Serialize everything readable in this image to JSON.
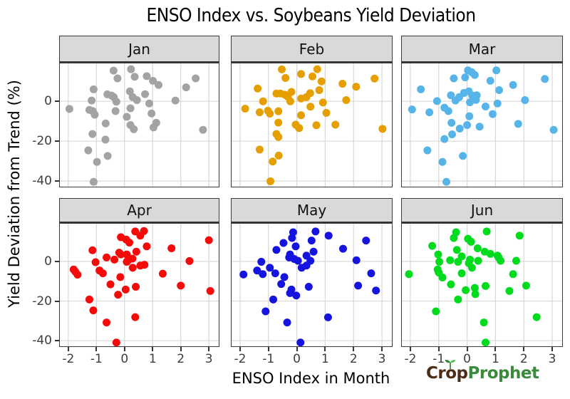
{
  "chart_data": {
    "type": "scatter",
    "title": "ENSO Index vs. Soybeans Yield Deviation",
    "xlabel": "ENSO Index in Month",
    "ylabel": "Yield Deviation from Trend (%)",
    "grid": true,
    "legend": "none",
    "xlim": [
      -2.3,
      3.35
    ],
    "ylim": [
      -42.8,
      19
    ],
    "x_ticks": [
      -2,
      -1,
      0,
      1,
      2,
      3
    ],
    "y_ticks": [
      0,
      -20,
      -40
    ],
    "facet_layout": "2 rows x 3 cols",
    "facets": [
      {
        "label": "Jan",
        "color": "#A3A3A3",
        "points": [
          [
            -0.39,
            15.4
          ],
          [
            0.23,
            16.1
          ],
          [
            0.36,
            12.3
          ],
          [
            -0.25,
            11.5
          ],
          [
            0.79,
            12.6
          ],
          [
            1.01,
            10.3
          ],
          [
            1.21,
            8.2
          ],
          [
            2.53,
            11.5
          ],
          [
            2.19,
            7.0
          ],
          [
            -1.1,
            6.0
          ],
          [
            0.19,
            5.0
          ],
          [
            -0.61,
            3.5
          ],
          [
            -0.46,
            2.9
          ],
          [
            -0.38,
            2.1
          ],
          [
            0.73,
            3.6
          ],
          [
            0.29,
            2.1
          ],
          [
            0.44,
            0.6
          ],
          [
            -0.29,
            -0.2
          ],
          [
            -1.17,
            0.4
          ],
          [
            1.81,
            0.4
          ],
          [
            0.88,
            -1.1
          ],
          [
            -1.96,
            -3.8
          ],
          [
            -1.25,
            -4.3
          ],
          [
            -1.13,
            -4.9
          ],
          [
            0.21,
            -3.5
          ],
          [
            -0.32,
            -4.9
          ],
          [
            0.96,
            -6.1
          ],
          [
            -1.06,
            -6.7
          ],
          [
            0.08,
            -7.8
          ],
          [
            -0.67,
            -11.1
          ],
          [
            0.21,
            -11.9
          ],
          [
            0.33,
            -14.0
          ],
          [
            1.13,
            -10.8
          ],
          [
            1.03,
            -13.1
          ],
          [
            2.79,
            -14.3
          ],
          [
            -1.14,
            -16.4
          ],
          [
            -0.68,
            -19.2
          ],
          [
            -1.29,
            -24.6
          ],
          [
            -0.6,
            -27.4
          ],
          [
            -0.98,
            -30.4
          ],
          [
            -1.1,
            -40.4
          ]
        ]
      },
      {
        "label": "Feb",
        "color": "#E69F00",
        "points": [
          [
            -0.53,
            16.0
          ],
          [
            0.72,
            16.1
          ],
          [
            0.15,
            13.7
          ],
          [
            0.55,
            12.5
          ],
          [
            -0.4,
            11.7
          ],
          [
            0.87,
            10.0
          ],
          [
            2.74,
            11.4
          ],
          [
            1.61,
            8.8
          ],
          [
            2.09,
            7.3
          ],
          [
            -1.38,
            6.4
          ],
          [
            0.79,
            5.6
          ],
          [
            -0.72,
            3.9
          ],
          [
            -0.58,
            3.9
          ],
          [
            -0.42,
            3.3
          ],
          [
            -0.19,
            4.7
          ],
          [
            -0.32,
            2.3
          ],
          [
            0.47,
            4.1
          ],
          [
            0.34,
            2.1
          ],
          [
            0.15,
            1.4
          ],
          [
            -0.23,
            0.0
          ],
          [
            -1.19,
            0.0
          ],
          [
            1.74,
            0.6
          ],
          [
            0.48,
            -2.7
          ],
          [
            0.92,
            -0.6
          ],
          [
            -1.82,
            -3.7
          ],
          [
            -1.31,
            -5.5
          ],
          [
            -1.02,
            -4.7
          ],
          [
            -0.95,
            -6.2
          ],
          [
            -0.65,
            -5.0
          ],
          [
            0.15,
            -7.0
          ],
          [
            1.04,
            -5.8
          ],
          [
            -0.65,
            -10.7
          ],
          [
            -0.04,
            -11.7
          ],
          [
            0.08,
            -13.4
          ],
          [
            0.69,
            -12.0
          ],
          [
            1.36,
            -11.7
          ],
          [
            3.02,
            -13.8
          ],
          [
            -0.72,
            -16.4
          ],
          [
            -0.65,
            -17.9
          ],
          [
            -1.31,
            -24.2
          ],
          [
            -0.64,
            -27.2
          ],
          [
            -0.85,
            -30.2
          ],
          [
            -0.93,
            -40.1
          ]
        ]
      },
      {
        "label": "Mar",
        "color": "#56B4E9",
        "points": [
          [
            0.03,
            15.5
          ],
          [
            0.16,
            14.6
          ],
          [
            -0.07,
            12.0
          ],
          [
            0.27,
            13.2
          ],
          [
            1.03,
            15.5
          ],
          [
            -0.47,
            11.5
          ],
          [
            0.82,
            10.3
          ],
          [
            2.74,
            11.2
          ],
          [
            1.62,
            8.2
          ],
          [
            -1.63,
            6.0
          ],
          [
            1.13,
            5.6
          ],
          [
            0.06,
            5.0
          ],
          [
            -0.11,
            4.2
          ],
          [
            -0.57,
            3.0
          ],
          [
            -0.28,
            2.1
          ],
          [
            0.18,
            2.9
          ],
          [
            0.34,
            3.0
          ],
          [
            0.31,
            0.7
          ],
          [
            -1.06,
            0.1
          ],
          [
            -0.41,
            0.4
          ],
          [
            0.1,
            -0.5
          ],
          [
            2.04,
            0.6
          ],
          [
            0.65,
            -2.6
          ],
          [
            1.07,
            -1.1
          ],
          [
            -1.94,
            -4.1
          ],
          [
            -0.8,
            -3.2
          ],
          [
            -0.66,
            -4.9
          ],
          [
            -1.33,
            -5.5
          ],
          [
            0.9,
            -6.4
          ],
          [
            0.08,
            -7.5
          ],
          [
            -0.55,
            -10.8
          ],
          [
            0.0,
            -11.9
          ],
          [
            0.44,
            -12.7
          ],
          [
            -0.26,
            -13.7
          ],
          [
            1.8,
            -11.3
          ],
          [
            3.05,
            -14.3
          ],
          [
            -0.53,
            -16.6
          ],
          [
            -0.8,
            -18.9
          ],
          [
            -1.4,
            -24.6
          ],
          [
            -0.15,
            -27.4
          ],
          [
            -0.87,
            -30.4
          ],
          [
            -0.73,
            -40.4
          ]
        ]
      },
      {
        "label": "Apr",
        "color": "#F50A0A",
        "points": [
          [
            0.38,
            15.1
          ],
          [
            0.69,
            15.3
          ],
          [
            0.56,
            13.0
          ],
          [
            -0.13,
            12.2
          ],
          [
            0.06,
            11.0
          ],
          [
            0.17,
            9.5
          ],
          [
            3.0,
            10.7
          ],
          [
            0.79,
            7.6
          ],
          [
            1.67,
            6.6
          ],
          [
            -1.14,
            5.6
          ],
          [
            0.42,
            4.9
          ],
          [
            -0.19,
            4.4
          ],
          [
            -0.13,
            3.5
          ],
          [
            -0.64,
            2.0
          ],
          [
            0.08,
            3.5
          ],
          [
            -0.36,
            0.9
          ],
          [
            0.13,
            0.6
          ],
          [
            0.28,
            1.4
          ],
          [
            -1.03,
            -0.4
          ],
          [
            0.08,
            -0.2
          ],
          [
            2.31,
            0.2
          ],
          [
            0.56,
            -2.1
          ],
          [
            0.71,
            -1.7
          ],
          [
            -1.81,
            -4.1
          ],
          [
            -1.75,
            -5.2
          ],
          [
            -1.67,
            -6.7
          ],
          [
            -0.89,
            -4.6
          ],
          [
            -0.77,
            -6.0
          ],
          [
            0.29,
            -3.2
          ],
          [
            -0.15,
            -7.9
          ],
          [
            1.36,
            -6.2
          ],
          [
            -0.5,
            -11.6
          ],
          [
            0.04,
            -14.2
          ],
          [
            0.4,
            -12.8
          ],
          [
            2.0,
            -12.2
          ],
          [
            -0.23,
            -16.8
          ],
          [
            3.05,
            -14.9
          ],
          [
            -1.25,
            -19.2
          ],
          [
            -1.11,
            -24.7
          ],
          [
            -0.64,
            -30.8
          ],
          [
            0.38,
            -28.1
          ],
          [
            -0.29,
            -40.9
          ]
        ]
      },
      {
        "label": "May",
        "color": "#1414DE",
        "points": [
          [
            -0.13,
            14.7
          ],
          [
            0.66,
            15.1
          ],
          [
            -0.17,
            11.8
          ],
          [
            1.12,
            13.0
          ],
          [
            -0.47,
            9.3
          ],
          [
            0.52,
            10.5
          ],
          [
            2.44,
            10.5
          ],
          [
            -0.04,
            7.6
          ],
          [
            -0.72,
            5.8
          ],
          [
            1.63,
            6.4
          ],
          [
            0.59,
            4.9
          ],
          [
            -0.24,
            3.5
          ],
          [
            -0.27,
            2.0
          ],
          [
            -0.09,
            1.2
          ],
          [
            0.04,
            0.3
          ],
          [
            0.34,
            2.9
          ],
          [
            0.48,
            0.3
          ],
          [
            -1.25,
            -0.2
          ],
          [
            2.1,
            0.6
          ],
          [
            0.17,
            -3.2
          ],
          [
            0.34,
            -2.1
          ],
          [
            -1.4,
            -4.6
          ],
          [
            -1.2,
            -6.4
          ],
          [
            -0.95,
            -3.2
          ],
          [
            -1.88,
            -6.6
          ],
          [
            -0.76,
            -6.0
          ],
          [
            -0.44,
            -7.9
          ],
          [
            2.62,
            -6.0
          ],
          [
            -0.55,
            -11.4
          ],
          [
            -0.19,
            -14.2
          ],
          [
            -0.24,
            -16.0
          ],
          [
            0.42,
            -12.8
          ],
          [
            2.16,
            -12.2
          ],
          [
            2.79,
            -14.7
          ],
          [
            -0.02,
            -17.2
          ],
          [
            -0.83,
            -19.2
          ],
          [
            -1.1,
            -25.2
          ],
          [
            -0.34,
            -30.8
          ],
          [
            1.1,
            -28.2
          ],
          [
            0.13,
            -40.9
          ]
        ]
      },
      {
        "label": "Jun",
        "color": "#00DB1E",
        "points": [
          [
            -0.39,
            14.7
          ],
          [
            0.69,
            15.1
          ],
          [
            -0.47,
            11.8
          ],
          [
            0.03,
            11.4
          ],
          [
            0.14,
            9.9
          ],
          [
            1.85,
            13.0
          ],
          [
            -1.23,
            7.8
          ],
          [
            -0.36,
            5.8
          ],
          [
            0.37,
            6.6
          ],
          [
            -1.02,
            3.5
          ],
          [
            0.62,
            4.9
          ],
          [
            0.82,
            3.8
          ],
          [
            -0.19,
            2.5
          ],
          [
            1.07,
            2.9
          ],
          [
            1.11,
            2.0
          ],
          [
            -0.98,
            -0.2
          ],
          [
            -0.6,
            0.6
          ],
          [
            -0.32,
            -0.2
          ],
          [
            0.1,
            0.9
          ],
          [
            0.06,
            -0.9
          ],
          [
            0.39,
            0.3
          ],
          [
            1.18,
            0.3
          ],
          [
            1.73,
            0.3
          ],
          [
            -2.05,
            -6.4
          ],
          [
            -1.04,
            -4.1
          ],
          [
            -1.0,
            -5.6
          ],
          [
            -0.87,
            -8.1
          ],
          [
            -0.19,
            -6.0
          ],
          [
            0.17,
            -3.2
          ],
          [
            1.62,
            -6.4
          ],
          [
            -0.57,
            -11.6
          ],
          [
            -0.05,
            -14.5
          ],
          [
            0.27,
            -13.4
          ],
          [
            0.65,
            -12.4
          ],
          [
            1.49,
            -14.9
          ],
          [
            2.08,
            -12.2
          ],
          [
            0.29,
            -16.5
          ],
          [
            -0.32,
            -19.2
          ],
          [
            -1.1,
            -25.2
          ],
          [
            2.45,
            -28.1
          ],
          [
            0.59,
            -30.8
          ],
          [
            0.65,
            -40.9
          ]
        ]
      }
    ],
    "style": {
      "strip_bg": "#d9d9d9",
      "panel_bg": "#ffffff",
      "grid_color": "#d8d8d8",
      "border_color": "#3c3c3c",
      "tick_label_color": "#3d3d3d",
      "point_radius": 5.5
    }
  },
  "branding": {
    "crop": "Crop",
    "prophet": "Prophet",
    "crop_color": "#4a2c17",
    "prophet_color": "#3a8a3c"
  }
}
